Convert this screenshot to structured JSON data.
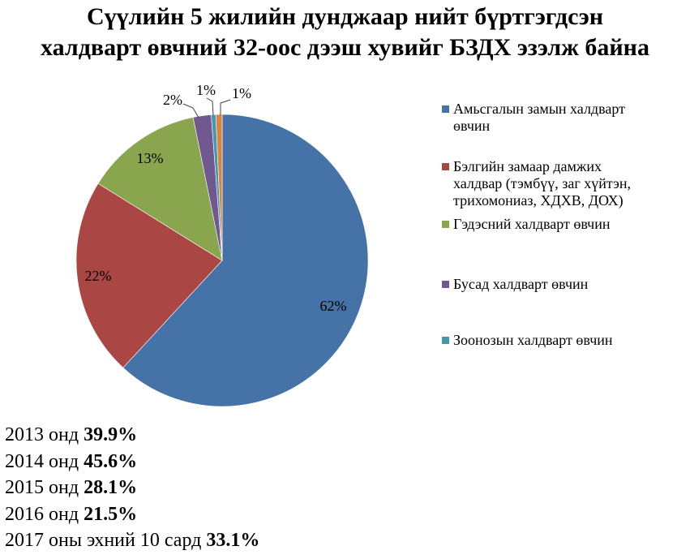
{
  "title_line1": "Сүүлийн 5 жилийн дунджаар нийт бүртгэгдсэн",
  "title_line2": "халдварт өвчний 32-оос дээш хувийг БЗДХ эзэлж байна",
  "chart_data": {
    "type": "pie",
    "slices": [
      {
        "label": "Амьсгалын замын халдварт өвчин",
        "value": 62,
        "display": "62%",
        "color": "#4572A7"
      },
      {
        "label": "Бэлгийн замаар дамжих халдвар (тэмбүү, заг хүйтэн, трихомониаз, ХДХВ, ДОХ)",
        "value": 22,
        "display": "22%",
        "color": "#AA4643"
      },
      {
        "label": "Гэдэсний халдварт өвчин",
        "value": 13,
        "display": "13%",
        "color": "#89A54E"
      },
      {
        "label": "Бусад халдварт өвчин",
        "value": 2,
        "display": "2%",
        "color": "#71588F"
      },
      {
        "label": "Зоонозын халдварт өвчин",
        "value": 0.5,
        "display": "1%",
        "color": "#4198AF"
      },
      {
        "label": "",
        "value": 0.7,
        "display": "1%",
        "color": "#DB843D"
      }
    ],
    "legend_position": "right"
  },
  "legend_lines": [
    [
      "Амьсгалын замын халдварт",
      "өвчин"
    ],
    [
      "Бэлгийн замаар дамжих",
      "халдвар (тэмбүү, заг хүйтэн,",
      "трихомониаз, ХДХВ, ДОХ)"
    ],
    [
      "Гэдэсний халдварт өвчин"
    ],
    [
      "Бусад халдварт өвчин"
    ],
    [
      "Зоонозын халдварт өвчин"
    ]
  ],
  "stats": [
    {
      "text": "2013 онд ",
      "value": "39.9%"
    },
    {
      "text": "2014 онд ",
      "value": "45.6%"
    },
    {
      "text": "2015 онд ",
      "value": "28.1%"
    },
    {
      "text": "2016 онд ",
      "value": "21.5%"
    },
    {
      "text": "2017 оны эхний 10 сард ",
      "value": "33.1%"
    }
  ]
}
